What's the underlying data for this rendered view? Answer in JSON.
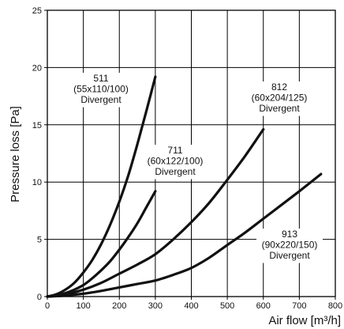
{
  "chart_data": {
    "type": "line",
    "xlabel": "Air flow [m³/h]",
    "ylabel": "Pressure loss [Pa]",
    "xlim": [
      0,
      800
    ],
    "ylim": [
      0,
      25
    ],
    "xticks": [
      "0",
      "100",
      "200",
      "300",
      "400",
      "500",
      "600",
      "700",
      "800"
    ],
    "yticks": [
      "0",
      "5",
      "10",
      "15",
      "20",
      "25"
    ],
    "grid": true,
    "legend": "none",
    "series": [
      {
        "lines": [
          "511",
          "(55x110/100)",
          "Divergent"
        ],
        "x": [
          0,
          25,
          50,
          75,
          100,
          125,
          150,
          175,
          200,
          225,
          250,
          275,
          300
        ],
        "y": [
          0,
          0.2,
          0.6,
          1.2,
          2.1,
          3.2,
          4.6,
          6.3,
          8.3,
          10.6,
          13.3,
          16.2,
          19.2
        ]
      },
      {
        "lines": [
          "711",
          "(60x122/100)",
          "Divergent"
        ],
        "x": [
          0,
          25,
          50,
          75,
          100,
          125,
          150,
          175,
          200,
          225,
          250,
          275,
          300
        ],
        "y": [
          0,
          0.1,
          0.3,
          0.6,
          1.0,
          1.6,
          2.3,
          3.1,
          4.1,
          5.2,
          6.4,
          7.8,
          9.2
        ]
      },
      {
        "lines": [
          "812",
          "(60x204/125)",
          "Divergent"
        ],
        "x": [
          0,
          50,
          100,
          150,
          200,
          250,
          300,
          350,
          400,
          450,
          500,
          550,
          600
        ],
        "y": [
          0,
          0.2,
          0.6,
          1.2,
          2.0,
          2.8,
          3.7,
          5.0,
          6.5,
          8.2,
          10.2,
          12.3,
          14.6
        ]
      },
      {
        "lines": [
          "913",
          "(90x220/150)",
          "Divergent"
        ],
        "x": [
          0,
          50,
          100,
          150,
          200,
          250,
          300,
          350,
          400,
          450,
          500,
          550,
          600,
          650,
          700,
          760
        ],
        "y": [
          0,
          0.1,
          0.25,
          0.5,
          0.8,
          1.1,
          1.4,
          1.9,
          2.5,
          3.4,
          4.5,
          5.6,
          6.8,
          8.0,
          9.2,
          10.7
        ]
      }
    ]
  }
}
